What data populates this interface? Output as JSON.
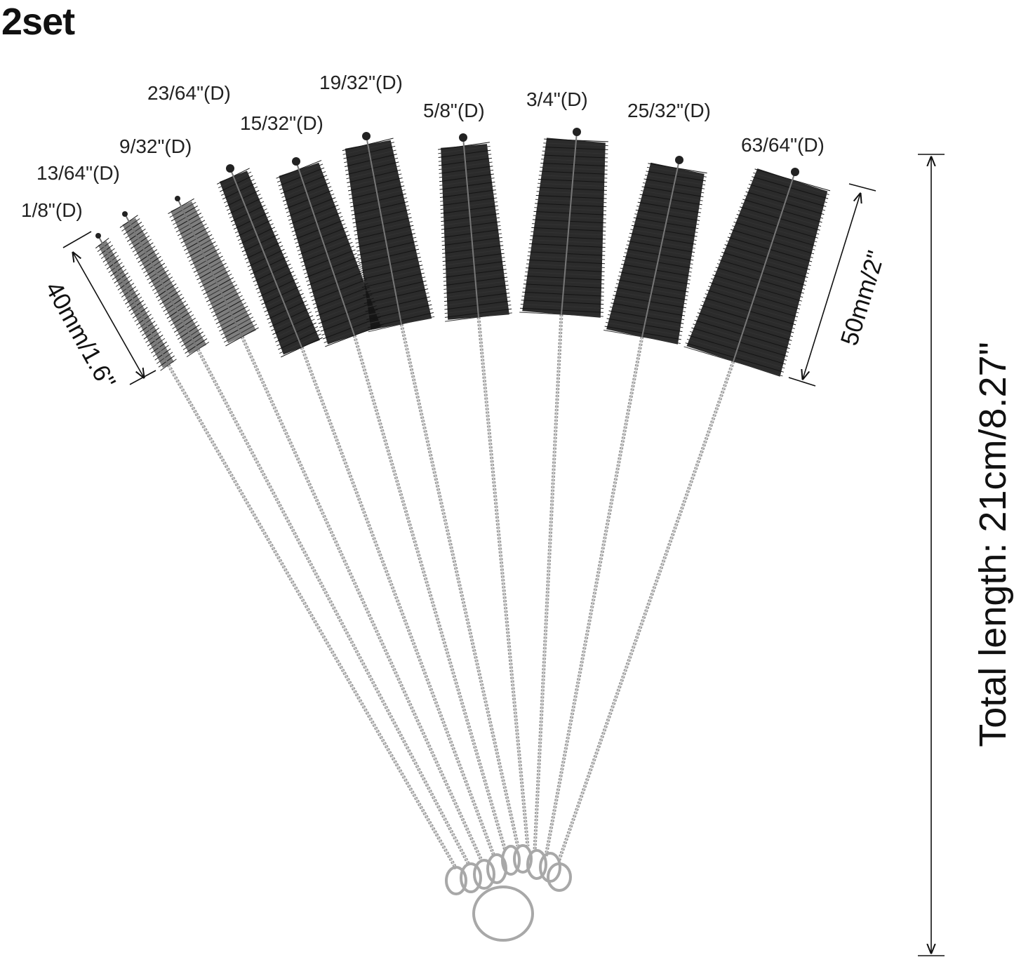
{
  "set_title": "2set",
  "brush_sizes": [
    "1/8\"(D)",
    "13/64\"(D)",
    "9/32\"(D)",
    "23/64\"(D)",
    "15/32\"(D)",
    "19/32\"(D)",
    "5/8\"(D)",
    "3/4\"(D)",
    "25/32\"(D)",
    "63/64\"(D)"
  ],
  "dimensions": {
    "small_brush_head": "40mm/1.6\"",
    "large_brush_head": "50mm/2\"",
    "total_length": "Total length: 21cm/8.27\""
  },
  "colors": {
    "bristle": "#141414",
    "wire": "#9a9a9a",
    "ring": "#a8a8a8",
    "text": "#1a1a1a"
  }
}
